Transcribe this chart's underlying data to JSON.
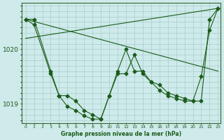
{
  "title": "Graphe pression niveau de la mer (hPa)",
  "background_color": "#ceeaea",
  "plot_bg_color": "#ceeaea",
  "grid_color": "#b8d8d8",
  "line_color": "#1a5c1a",
  "marker_color": "#1a5c1a",
  "xlim": [
    -0.5,
    23.3
  ],
  "ylim": [
    1018.65,
    1020.85
  ],
  "yticks": [
    1019,
    1020
  ],
  "xtick_labels": [
    "0",
    "1",
    "2",
    "3",
    "4",
    "5",
    "6",
    "7",
    "8",
    "9",
    "10",
    "11",
    "12",
    "13",
    "14",
    "15",
    "16",
    "17",
    "18",
    "19",
    "20",
    "21",
    "22",
    "23"
  ],
  "series1_x": [
    0,
    1,
    3,
    4,
    5,
    6,
    7,
    8,
    9,
    10,
    11,
    12,
    13,
    14,
    15,
    16,
    17,
    18,
    19,
    20,
    21,
    22,
    23
  ],
  "series1_y": [
    1020.55,
    1020.45,
    1019.55,
    1019.15,
    1019.15,
    1019.05,
    1018.88,
    1018.8,
    1018.72,
    1019.15,
    1019.55,
    1019.55,
    1019.9,
    1019.55,
    1019.4,
    1019.35,
    1019.2,
    1019.15,
    1019.1,
    1019.05,
    1019.5,
    1020.35,
    1020.75
  ],
  "series2_x": [
    0,
    1,
    3,
    4,
    5,
    6,
    7,
    8,
    9,
    10,
    11,
    12,
    13,
    14,
    15,
    16,
    17,
    18,
    19,
    20,
    21,
    22,
    23
  ],
  "series2_y": [
    1020.55,
    1020.55,
    1019.6,
    1019.15,
    1018.95,
    1018.88,
    1018.78,
    1018.72,
    1018.72,
    1019.15,
    1019.6,
    1020.0,
    1019.6,
    1019.6,
    1019.4,
    1019.25,
    1019.15,
    1019.1,
    1019.05,
    1019.05,
    1019.05,
    1020.55,
    1020.75
  ],
  "trend1_x": [
    0,
    23
  ],
  "trend1_y": [
    1020.55,
    1019.6
  ],
  "trend2_x": [
    0,
    23
  ],
  "trend2_y": [
    1020.2,
    1020.75
  ]
}
